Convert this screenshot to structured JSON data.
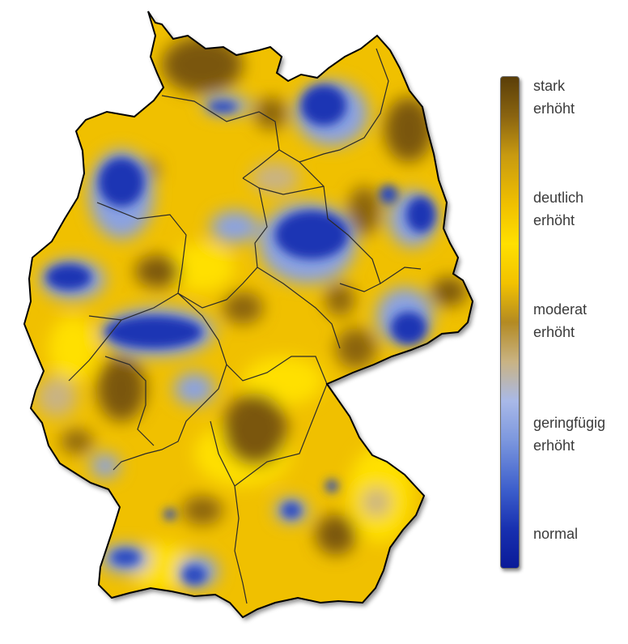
{
  "legend": {
    "title": "",
    "labels": [
      {
        "line1": "stark",
        "line2": "erhöht"
      },
      {
        "line1": "deutlich",
        "line2": "erhöht"
      },
      {
        "line1": "moderat",
        "line2": "erhöht"
      },
      {
        "line1": "geringfügig",
        "line2": "erhöht"
      },
      {
        "line1": "normal",
        "line2": ""
      }
    ],
    "colors": [
      "#5a3e08",
      "#ffe000",
      "#b38a22",
      "#a9b9e8",
      "#0a1a98"
    ]
  },
  "map": {
    "country": "Deutschland",
    "colors": {
      "border": "#000000",
      "state_border": "#2a2a2a",
      "base": "#f2c200"
    }
  }
}
